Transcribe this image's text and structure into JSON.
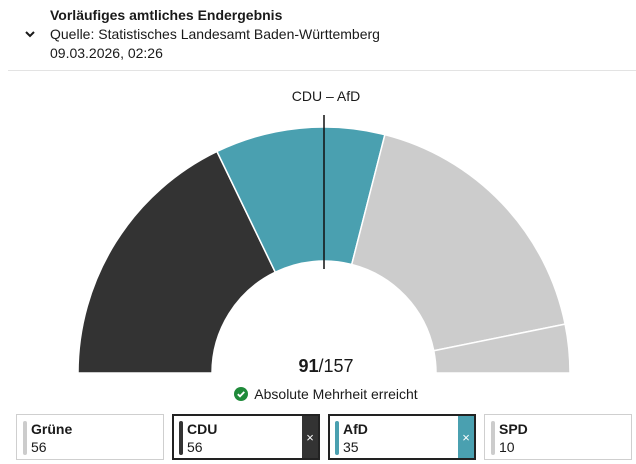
{
  "header": {
    "title": "Vorläufiges amtliches Endergebnis",
    "source": "Quelle: Statistisches Landesamt Baden-Württemberg",
    "date": "09.03.2026, 02:26",
    "toggle_icon": "chevron-down-icon"
  },
  "chart": {
    "coalition_label": "CDU – AfD",
    "coalition_seats": "91",
    "total_seats": "/157",
    "majority_text": "Absolute Mehrheit erreicht",
    "majority_icon": "check-circle-icon"
  },
  "chart_data": {
    "type": "pie",
    "subtype": "semicircle-seat-distribution",
    "total": 157,
    "majority_threshold": 79,
    "slices": [
      {
        "name": "CDU",
        "value": 56,
        "color": "#333333",
        "selected": true
      },
      {
        "name": "AfD",
        "value": 35,
        "color": "#4aa0b0",
        "selected": true
      },
      {
        "name": "Grüne",
        "value": 56,
        "color": "#cccccc",
        "selected": false
      },
      {
        "name": "SPD",
        "value": 10,
        "color": "#cccccc",
        "selected": false
      }
    ]
  },
  "parties": [
    {
      "name": "Grüne",
      "seats": "56",
      "color": "#cccccc",
      "selected": false
    },
    {
      "name": "CDU",
      "seats": "56",
      "color": "#333333",
      "selected": true,
      "remove_label": "×"
    },
    {
      "name": "AfD",
      "seats": "35",
      "color": "#4aa0b0",
      "selected": true,
      "remove_label": "×"
    },
    {
      "name": "SPD",
      "seats": "10",
      "color": "#cccccc",
      "selected": false
    }
  ]
}
